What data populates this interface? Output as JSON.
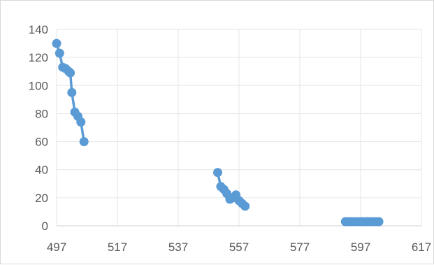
{
  "chart_data": {
    "type": "line",
    "title": "",
    "xlabel": "",
    "ylabel": "",
    "xlim": [
      497,
      617
    ],
    "ylim": [
      0,
      140
    ],
    "x_ticks": [
      497,
      517,
      537,
      557,
      577,
      597,
      617
    ],
    "y_ticks": [
      0,
      20,
      40,
      60,
      80,
      100,
      120,
      140
    ],
    "x_tick_labels": [
      "497",
      "517",
      "537",
      "557",
      "577",
      "597",
      "617"
    ],
    "y_tick_labels": [
      "0",
      "20",
      "40",
      "60",
      "80",
      "100",
      "120",
      "140"
    ],
    "grid": true,
    "legend": "none",
    "series_color": "#5B9BD5",
    "series": [
      {
        "segments": [
          [
            [
              497,
              130
            ],
            [
              498,
              123
            ],
            [
              499,
              113
            ],
            [
              500,
              112
            ],
            [
              501,
              110
            ],
            [
              501.5,
              109
            ],
            [
              502,
              95
            ],
            [
              503,
              81
            ],
            [
              504,
              78
            ],
            [
              505,
              74
            ],
            [
              506,
              60
            ]
          ],
          [
            [
              550,
              38
            ],
            [
              551,
              28
            ],
            [
              552,
              26
            ],
            [
              553,
              23
            ],
            [
              554,
              19
            ],
            [
              555,
              20
            ],
            [
              556,
              22
            ],
            [
              557,
              18
            ],
            [
              558,
              16
            ],
            [
              559,
              14
            ]
          ],
          [
            [
              592,
              3
            ],
            [
              593,
              3
            ],
            [
              594,
              3
            ],
            [
              595,
              3
            ],
            [
              596,
              3
            ],
            [
              597,
              3
            ],
            [
              598,
              3
            ],
            [
              599,
              3
            ],
            [
              600,
              3
            ],
            [
              601,
              3
            ],
            [
              602,
              3
            ],
            [
              603,
              3
            ]
          ]
        ]
      }
    ]
  }
}
